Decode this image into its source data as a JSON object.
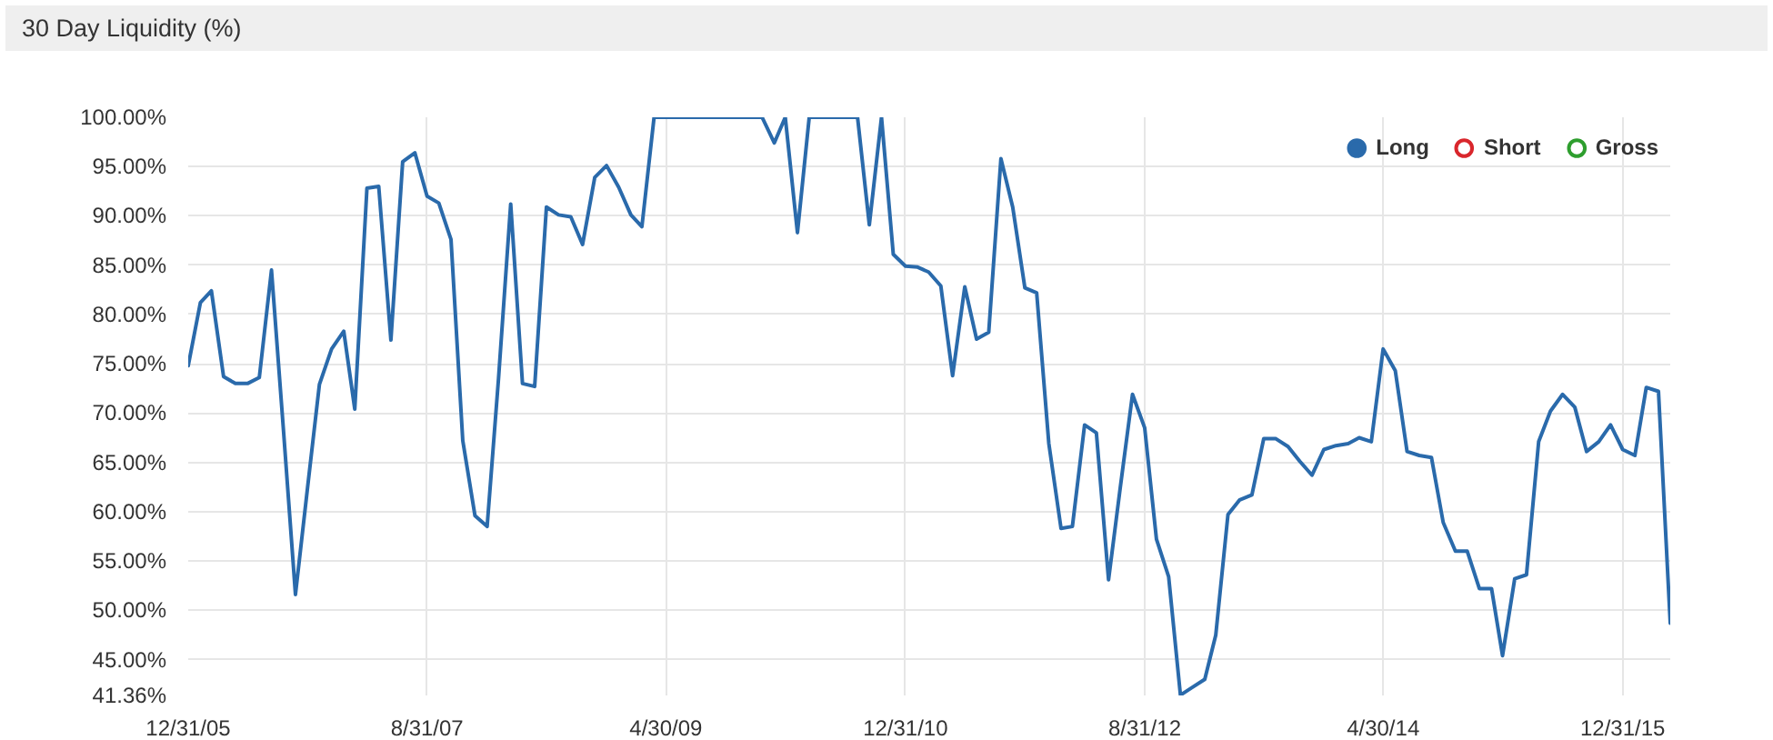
{
  "chart_data": {
    "type": "line",
    "title": "30 Day Liquidity (%)",
    "x": [
      "2005-12-31",
      "2006-01-31",
      "2006-02-28",
      "2006-03-31",
      "2006-04-30",
      "2006-05-31",
      "2006-06-30",
      "2006-07-31",
      "2006-08-31",
      "2006-09-30",
      "2006-10-31",
      "2006-11-30",
      "2006-12-31",
      "2007-01-31",
      "2007-02-28",
      "2007-03-31",
      "2007-04-30",
      "2007-05-31",
      "2007-06-30",
      "2007-07-31",
      "2007-08-31",
      "2007-09-30",
      "2007-10-31",
      "2007-11-30",
      "2007-12-31",
      "2008-01-31",
      "2008-02-29",
      "2008-03-31",
      "2008-04-30",
      "2008-05-31",
      "2008-06-30",
      "2008-07-31",
      "2008-08-31",
      "2008-09-30",
      "2008-10-31",
      "2008-11-30",
      "2008-12-31",
      "2009-01-31",
      "2009-02-28",
      "2009-03-31",
      "2009-04-30",
      "2009-05-31",
      "2009-06-30",
      "2009-07-31",
      "2009-08-31",
      "2009-09-30",
      "2009-10-31",
      "2009-11-30",
      "2009-12-31",
      "2010-01-31",
      "2010-02-28",
      "2010-03-31",
      "2010-04-30",
      "2010-05-31",
      "2010-06-30",
      "2010-07-31",
      "2010-08-31",
      "2010-09-30",
      "2010-10-31",
      "2010-11-30",
      "2010-12-31",
      "2011-01-31",
      "2011-02-28",
      "2011-03-31",
      "2011-04-30",
      "2011-05-31",
      "2011-06-30",
      "2011-07-31",
      "2011-08-31",
      "2011-09-30",
      "2011-10-31",
      "2011-11-30",
      "2011-12-31",
      "2012-01-31",
      "2012-02-29",
      "2012-03-31",
      "2012-04-30",
      "2012-05-31",
      "2012-06-30",
      "2012-07-31",
      "2012-08-31",
      "2012-09-30",
      "2012-10-31",
      "2012-11-30",
      "2012-12-31",
      "2013-01-31",
      "2013-02-28",
      "2013-03-31",
      "2013-04-30",
      "2013-05-31",
      "2013-06-30",
      "2013-07-31",
      "2013-08-31",
      "2013-09-30",
      "2013-10-31",
      "2013-11-30",
      "2013-12-31",
      "2014-01-31",
      "2014-02-28",
      "2014-03-31",
      "2014-04-30",
      "2014-05-31",
      "2014-06-30",
      "2014-07-31",
      "2014-08-31",
      "2014-09-30",
      "2014-10-31",
      "2014-11-30",
      "2014-12-31",
      "2015-01-31",
      "2015-02-28",
      "2015-03-31",
      "2015-04-30",
      "2015-05-31",
      "2015-06-30",
      "2015-07-31",
      "2015-08-31",
      "2015-09-30",
      "2015-10-31",
      "2015-11-30",
      "2015-12-31",
      "2016-01-31",
      "2016-02-29",
      "2016-03-31",
      "2016-04-30"
    ],
    "series": [
      {
        "name": "Long",
        "color": "#2a6aab",
        "values": [
          74.8,
          81.2,
          82.4,
          73.7,
          73.0,
          73.0,
          73.6,
          84.5,
          68.0,
          51.6,
          62.5,
          72.9,
          76.5,
          78.3,
          70.4,
          92.8,
          93.0,
          77.4,
          95.5,
          96.4,
          92.0,
          91.3,
          87.6,
          67.2,
          59.6,
          58.5,
          73.5,
          91.2,
          73.0,
          72.7,
          90.9,
          90.1,
          89.9,
          87.1,
          93.9,
          95.1,
          92.9,
          90.1,
          88.9,
          100,
          100,
          100,
          100,
          100,
          100,
          100,
          100,
          100,
          100,
          97.4,
          100,
          88.3,
          100,
          100,
          100,
          100,
          100,
          89.1,
          100,
          86.1,
          84.9,
          84.8,
          84.3,
          82.9,
          73.8,
          82.8,
          77.5,
          78.2,
          95.8,
          90.9,
          82.7,
          82.2,
          66.9,
          58.3,
          58.5,
          68.8,
          68.0,
          53.1,
          62.5,
          71.9,
          68.5,
          57.2,
          53.4,
          41.4,
          42.2,
          43.0,
          47.5,
          59.7,
          61.2,
          61.7,
          67.4,
          67.4,
          66.6,
          65.1,
          63.7,
          66.3,
          66.7,
          66.9,
          67.5,
          67.1,
          76.5,
          74.3,
          66.1,
          65.7,
          65.5,
          58.9,
          56.0,
          56.0,
          52.2,
          52.2,
          45.4,
          53.2,
          53.6,
          67.1,
          70.2,
          71.9,
          70.6,
          66.1,
          67.1,
          68.8,
          66.3,
          65.7,
          72.6,
          72.2,
          48.7
        ]
      },
      {
        "name": "Short",
        "color": "#d9262c",
        "values": [
          null,
          null,
          null,
          null,
          null,
          null,
          null,
          null,
          null,
          null,
          null,
          null,
          null,
          null,
          null,
          null,
          null,
          null,
          null,
          null,
          null,
          null,
          null,
          null,
          null,
          null,
          null,
          null,
          null,
          null,
          null,
          null,
          null,
          null,
          null,
          null,
          null,
          null,
          null,
          null,
          null,
          null,
          null,
          null,
          null,
          null,
          null,
          null,
          null,
          null,
          null,
          null,
          null,
          null,
          null,
          null,
          null,
          null,
          null,
          null,
          null,
          null,
          null,
          null,
          null,
          null,
          null,
          null,
          null,
          null,
          null,
          null,
          null,
          null,
          null,
          null,
          null,
          null,
          null,
          null,
          null,
          null,
          null,
          null,
          null,
          null,
          null,
          null,
          null,
          null,
          null,
          null,
          null,
          null,
          null,
          null,
          null,
          null,
          null,
          null,
          null,
          null,
          null,
          null,
          null,
          null,
          null,
          null,
          null,
          null,
          null,
          null,
          null,
          null,
          null,
          null,
          null,
          null,
          null,
          null,
          null,
          null,
          null,
          null,
          null
        ]
      },
      {
        "name": "Gross",
        "color": "#2e9e2e",
        "values": [
          null,
          null,
          null,
          null,
          null,
          null,
          null,
          null,
          null,
          null,
          null,
          null,
          null,
          null,
          null,
          null,
          null,
          null,
          null,
          null,
          null,
          null,
          null,
          null,
          null,
          null,
          null,
          null,
          null,
          null,
          null,
          null,
          null,
          null,
          null,
          null,
          null,
          null,
          null,
          null,
          null,
          null,
          null,
          null,
          null,
          null,
          null,
          null,
          null,
          null,
          null,
          null,
          null,
          null,
          null,
          null,
          null,
          null,
          null,
          null,
          null,
          null,
          null,
          null,
          null,
          null,
          null,
          null,
          null,
          null,
          null,
          null,
          null,
          null,
          null,
          null,
          null,
          null,
          null,
          null,
          null,
          null,
          null,
          null,
          null,
          null,
          null,
          null,
          null,
          null,
          null,
          null,
          null,
          null,
          null,
          null,
          null,
          null,
          null,
          null,
          null,
          null,
          null,
          null,
          null,
          null,
          null,
          null,
          null,
          null,
          null,
          null,
          null,
          null,
          null,
          null,
          null,
          null,
          null,
          null,
          null,
          null,
          null,
          null,
          null
        ]
      }
    ],
    "xlim": [
      "2005-12-31",
      "2016-04-30"
    ],
    "xticks": [
      {
        "value": "2005-12-31",
        "label": "12/31/05"
      },
      {
        "value": "2007-08-31",
        "label": "8/31/07"
      },
      {
        "value": "2009-04-30",
        "label": "4/30/09"
      },
      {
        "value": "2010-12-31",
        "label": "12/31/10"
      },
      {
        "value": "2012-08-31",
        "label": "8/31/12"
      },
      {
        "value": "2014-04-30",
        "label": "4/30/14"
      },
      {
        "value": "2015-12-31",
        "label": "12/31/15"
      }
    ],
    "ylim": [
      41.36,
      100
    ],
    "yticks": [
      {
        "value": 41.36,
        "label": "41.36%"
      },
      {
        "value": 45,
        "label": "45.00%"
      },
      {
        "value": 50,
        "label": "50.00%"
      },
      {
        "value": 55,
        "label": "55.00%"
      },
      {
        "value": 60,
        "label": "60.00%"
      },
      {
        "value": 65,
        "label": "65.00%"
      },
      {
        "value": 70,
        "label": "70.00%"
      },
      {
        "value": 75,
        "label": "75.00%"
      },
      {
        "value": 80,
        "label": "80.00%"
      },
      {
        "value": 85,
        "label": "85.00%"
      },
      {
        "value": 90,
        "label": "90.00%"
      },
      {
        "value": 95,
        "label": "95.00%"
      },
      {
        "value": 100,
        "label": "100.00%"
      }
    ],
    "grid": true,
    "legend": "top right"
  }
}
